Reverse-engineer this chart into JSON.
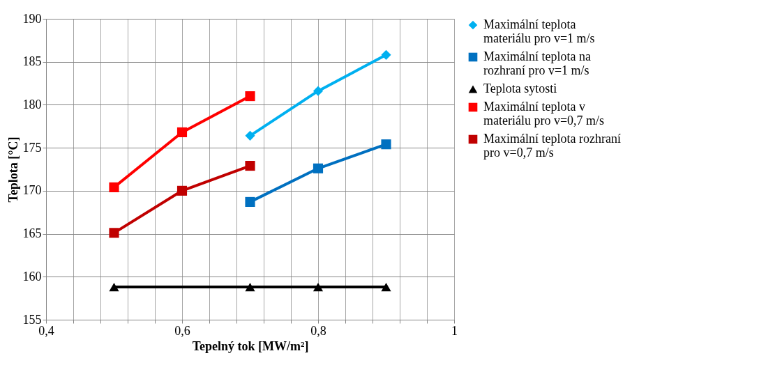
{
  "chart_data": {
    "type": "line",
    "xlabel": "Tepelný tok [MW/m²]",
    "ylabel": "Teplota [°C]",
    "xlim": [
      0.4,
      1
    ],
    "ylim": [
      155,
      190
    ],
    "xticks": [
      {
        "value": 0.4,
        "label": "0,4"
      },
      {
        "value": 0.44,
        "label": null
      },
      {
        "value": 0.48,
        "label": null
      },
      {
        "value": 0.52,
        "label": null
      },
      {
        "value": 0.56,
        "label": null
      },
      {
        "value": 0.6,
        "label": "0,6"
      },
      {
        "value": 0.64,
        "label": null
      },
      {
        "value": 0.68,
        "label": null
      },
      {
        "value": 0.72,
        "label": null
      },
      {
        "value": 0.76,
        "label": null
      },
      {
        "value": 0.8,
        "label": "0,8"
      },
      {
        "value": 0.84,
        "label": null
      },
      {
        "value": 0.88,
        "label": null
      },
      {
        "value": 0.92,
        "label": null
      },
      {
        "value": 0.96,
        "label": null
      },
      {
        "value": 1,
        "label": "1"
      }
    ],
    "yticks": [
      155,
      160,
      165,
      170,
      175,
      180,
      185,
      190
    ],
    "grid": true,
    "legend": "right",
    "series": [
      {
        "name": "Maximální teplota materiálu pro v=1 m/s",
        "color": "#00b0f0",
        "marker": "diamond",
        "x": [
          0.7,
          0.8,
          0.9
        ],
        "values": [
          176.4,
          181.6,
          185.8
        ]
      },
      {
        "name": "Maximální teplota na rozhraní pro v=1 m/s",
        "color": "#0070c0",
        "marker": "square",
        "x": [
          0.7,
          0.8,
          0.9
        ],
        "values": [
          168.7,
          172.6,
          175.4
        ]
      },
      {
        "name": "Teplota sytosti",
        "color": "#000000",
        "marker": "triangle",
        "x": [
          0.5,
          0.7,
          0.8,
          0.9
        ],
        "values": [
          158.8,
          158.8,
          158.8,
          158.8
        ]
      },
      {
        "name": "Maximální teplota v materiálu pro v=0,7 m/s",
        "color": "#ff0000",
        "marker": "square",
        "x": [
          0.5,
          0.6,
          0.7
        ],
        "values": [
          170.4,
          176.8,
          181.0
        ]
      },
      {
        "name": "Maximální teplota rozhraní pro v=0,7 m/s",
        "color": "#c00000",
        "marker": "square",
        "x": [
          0.5,
          0.6,
          0.7
        ],
        "values": [
          165.1,
          170.0,
          172.9
        ]
      }
    ]
  }
}
